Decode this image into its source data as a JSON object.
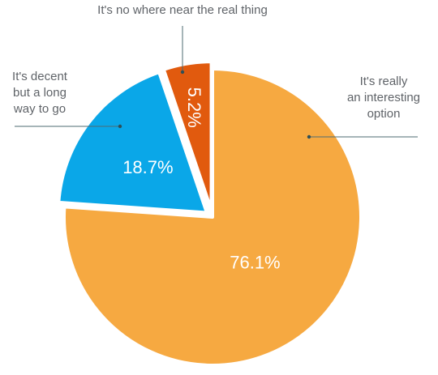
{
  "chart_data": {
    "type": "pie",
    "title": "",
    "slices": [
      {
        "label": "It's really an interesting option",
        "label_lines": [
          "It's really",
          "an interesting",
          "option"
        ],
        "value": 76.1,
        "display": "76.1%",
        "color": "#F6A941"
      },
      {
        "label": "It's decent but a long way to go",
        "label_lines": [
          "It's decent",
          "but a long",
          "way to go"
        ],
        "value": 18.7,
        "display": "18.7%",
        "color": "#0AA7E8"
      },
      {
        "label": "It's no where near the real thing",
        "label_lines": [
          "It's no where near the real thing"
        ],
        "value": 5.2,
        "display": "5.2%",
        "color": "#E15A0E"
      }
    ],
    "start": "12 o'clock",
    "direction": "clockwise",
    "legend": "none; callout labels with leader lines"
  }
}
